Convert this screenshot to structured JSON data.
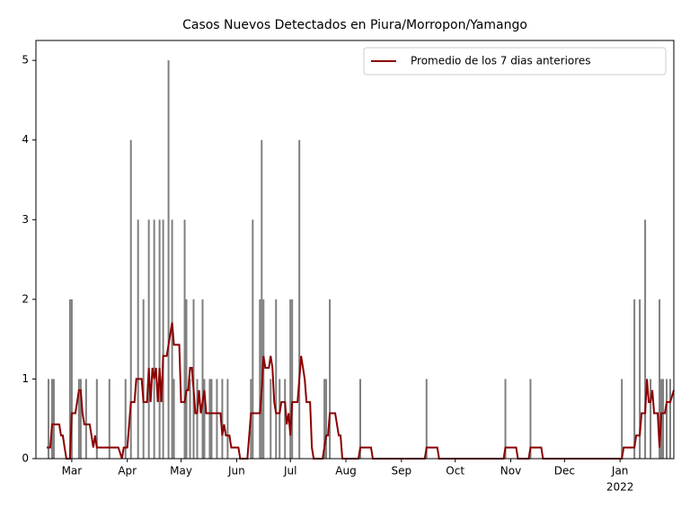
{
  "chart_data": {
    "type": "combo",
    "title": "Casos Nuevos Detectados en Piura/Morropon/Yamango",
    "xlim": [
      -20,
      336
    ],
    "ylim": [
      0,
      5.25
    ],
    "yticks": [
      0,
      1,
      2,
      3,
      4,
      5
    ],
    "xticks": [
      {
        "value": 0,
        "label": "Mar"
      },
      {
        "value": 31,
        "label": "Apr"
      },
      {
        "value": 61,
        "label": "May"
      },
      {
        "value": 92,
        "label": "Jun"
      },
      {
        "value": 122,
        "label": "Jul"
      },
      {
        "value": 153,
        "label": "Aug"
      },
      {
        "value": 184,
        "label": "Sep"
      },
      {
        "value": 214,
        "label": "Oct"
      },
      {
        "value": 245,
        "label": "Nov"
      },
      {
        "value": 275,
        "label": "Dec"
      },
      {
        "value": 306,
        "label": "Jan"
      }
    ],
    "x_year": "2022",
    "legend": "upper right",
    "series": [
      {
        "type": "bar",
        "color": "#7f7f7f",
        "x": [
          -13,
          -11,
          -10,
          -1,
          0,
          4,
          5,
          8,
          14,
          21,
          30,
          33,
          37,
          40,
          43,
          46,
          49,
          51,
          54,
          56,
          57,
          63,
          64,
          66,
          68,
          70,
          73,
          74,
          77,
          78,
          81,
          84,
          87,
          100,
          101,
          105,
          106,
          107,
          111,
          114,
          116,
          119,
          122,
          123,
          127,
          141,
          142,
          144,
          161,
          198,
          242,
          256,
          307,
          314,
          317,
          320,
          323,
          328,
          329,
          330,
          332,
          334
        ],
        "values": [
          1,
          1,
          1,
          2,
          2,
          1,
          1,
          1,
          1,
          1,
          1,
          4,
          3,
          2,
          3,
          3,
          3,
          3,
          5,
          3,
          1,
          3,
          2,
          1,
          2,
          1,
          2,
          1,
          1,
          1,
          1,
          1,
          1,
          1,
          3,
          2,
          4,
          2,
          1,
          2,
          1,
          1,
          2,
          2,
          4,
          1,
          1,
          2,
          1,
          1,
          1,
          1,
          1,
          2,
          2,
          3,
          1,
          2,
          1,
          1,
          1,
          1
        ]
      },
      {
        "type": "line",
        "name": "Promedio de los 7 dias anteriores",
        "color": "#8b0000",
        "x": [
          -14,
          -12,
          -11,
          -7,
          -6,
          -5,
          -4,
          -3,
          -1,
          0,
          2,
          4,
          5,
          6,
          7,
          10,
          11,
          12,
          13,
          14,
          26,
          28,
          29,
          31,
          33,
          35,
          36,
          39,
          40,
          42,
          43,
          44,
          45,
          46,
          47,
          48,
          49,
          50,
          51,
          53,
          55,
          56,
          57,
          60,
          61,
          63,
          64,
          65,
          66,
          67,
          68,
          69,
          70,
          71,
          72,
          73,
          74,
          75,
          83,
          84,
          85,
          86,
          88,
          89,
          93,
          94,
          98,
          100,
          105,
          106,
          107,
          108,
          110,
          111,
          112,
          113,
          114,
          116,
          117,
          119,
          120,
          121,
          122,
          123,
          126,
          127,
          128,
          130,
          131,
          133,
          134,
          135,
          140,
          142,
          143,
          144,
          147,
          149,
          150,
          151,
          160,
          161,
          167,
          168,
          197,
          198,
          204,
          205,
          241,
          242,
          248,
          249,
          255,
          256,
          262,
          263,
          307,
          308,
          314,
          315,
          317,
          318,
          320,
          321,
          322,
          323,
          324,
          325,
          327,
          328,
          329,
          331,
          332,
          334,
          336
        ],
        "values": [
          0.14,
          0.14,
          0.43,
          0.43,
          0.29,
          0.29,
          0.14,
          0,
          0,
          0.57,
          0.57,
          0.86,
          0.86,
          0.57,
          0.43,
          0.43,
          0.29,
          0.14,
          0.29,
          0.14,
          0.14,
          0,
          0.14,
          0.14,
          0.71,
          0.71,
          1,
          1,
          0.71,
          0.71,
          1.14,
          0.71,
          1.14,
          1,
          1.14,
          0.71,
          1.14,
          0.71,
          1.29,
          1.29,
          1.57,
          1.71,
          1.43,
          1.43,
          0.71,
          0.71,
          0.86,
          0.86,
          1.14,
          1.14,
          0.86,
          0.57,
          0.57,
          0.86,
          0.57,
          0.71,
          0.86,
          0.57,
          0.57,
          0.29,
          0.43,
          0.29,
          0.29,
          0.14,
          0.14,
          0,
          0,
          0.57,
          0.57,
          0.86,
          1.29,
          1.14,
          1.14,
          1.29,
          1.14,
          0.71,
          0.57,
          0.57,
          0.71,
          0.71,
          0.43,
          0.57,
          0.29,
          0.71,
          0.71,
          1,
          1.29,
          1,
          0.71,
          0.71,
          0.14,
          0,
          0,
          0.29,
          0.29,
          0.57,
          0.57,
          0.29,
          0.29,
          0,
          0,
          0.14,
          0.14,
          0,
          0,
          0.14,
          0.14,
          0,
          0,
          0.14,
          0.14,
          0,
          0,
          0.14,
          0.14,
          0,
          0,
          0.14,
          0.14,
          0.29,
          0.29,
          0.57,
          0.57,
          1,
          0.71,
          0.71,
          0.86,
          0.57,
          0.57,
          0.14,
          0.57,
          0.57,
          0.71,
          0.71,
          0.86
        ]
      }
    ]
  }
}
